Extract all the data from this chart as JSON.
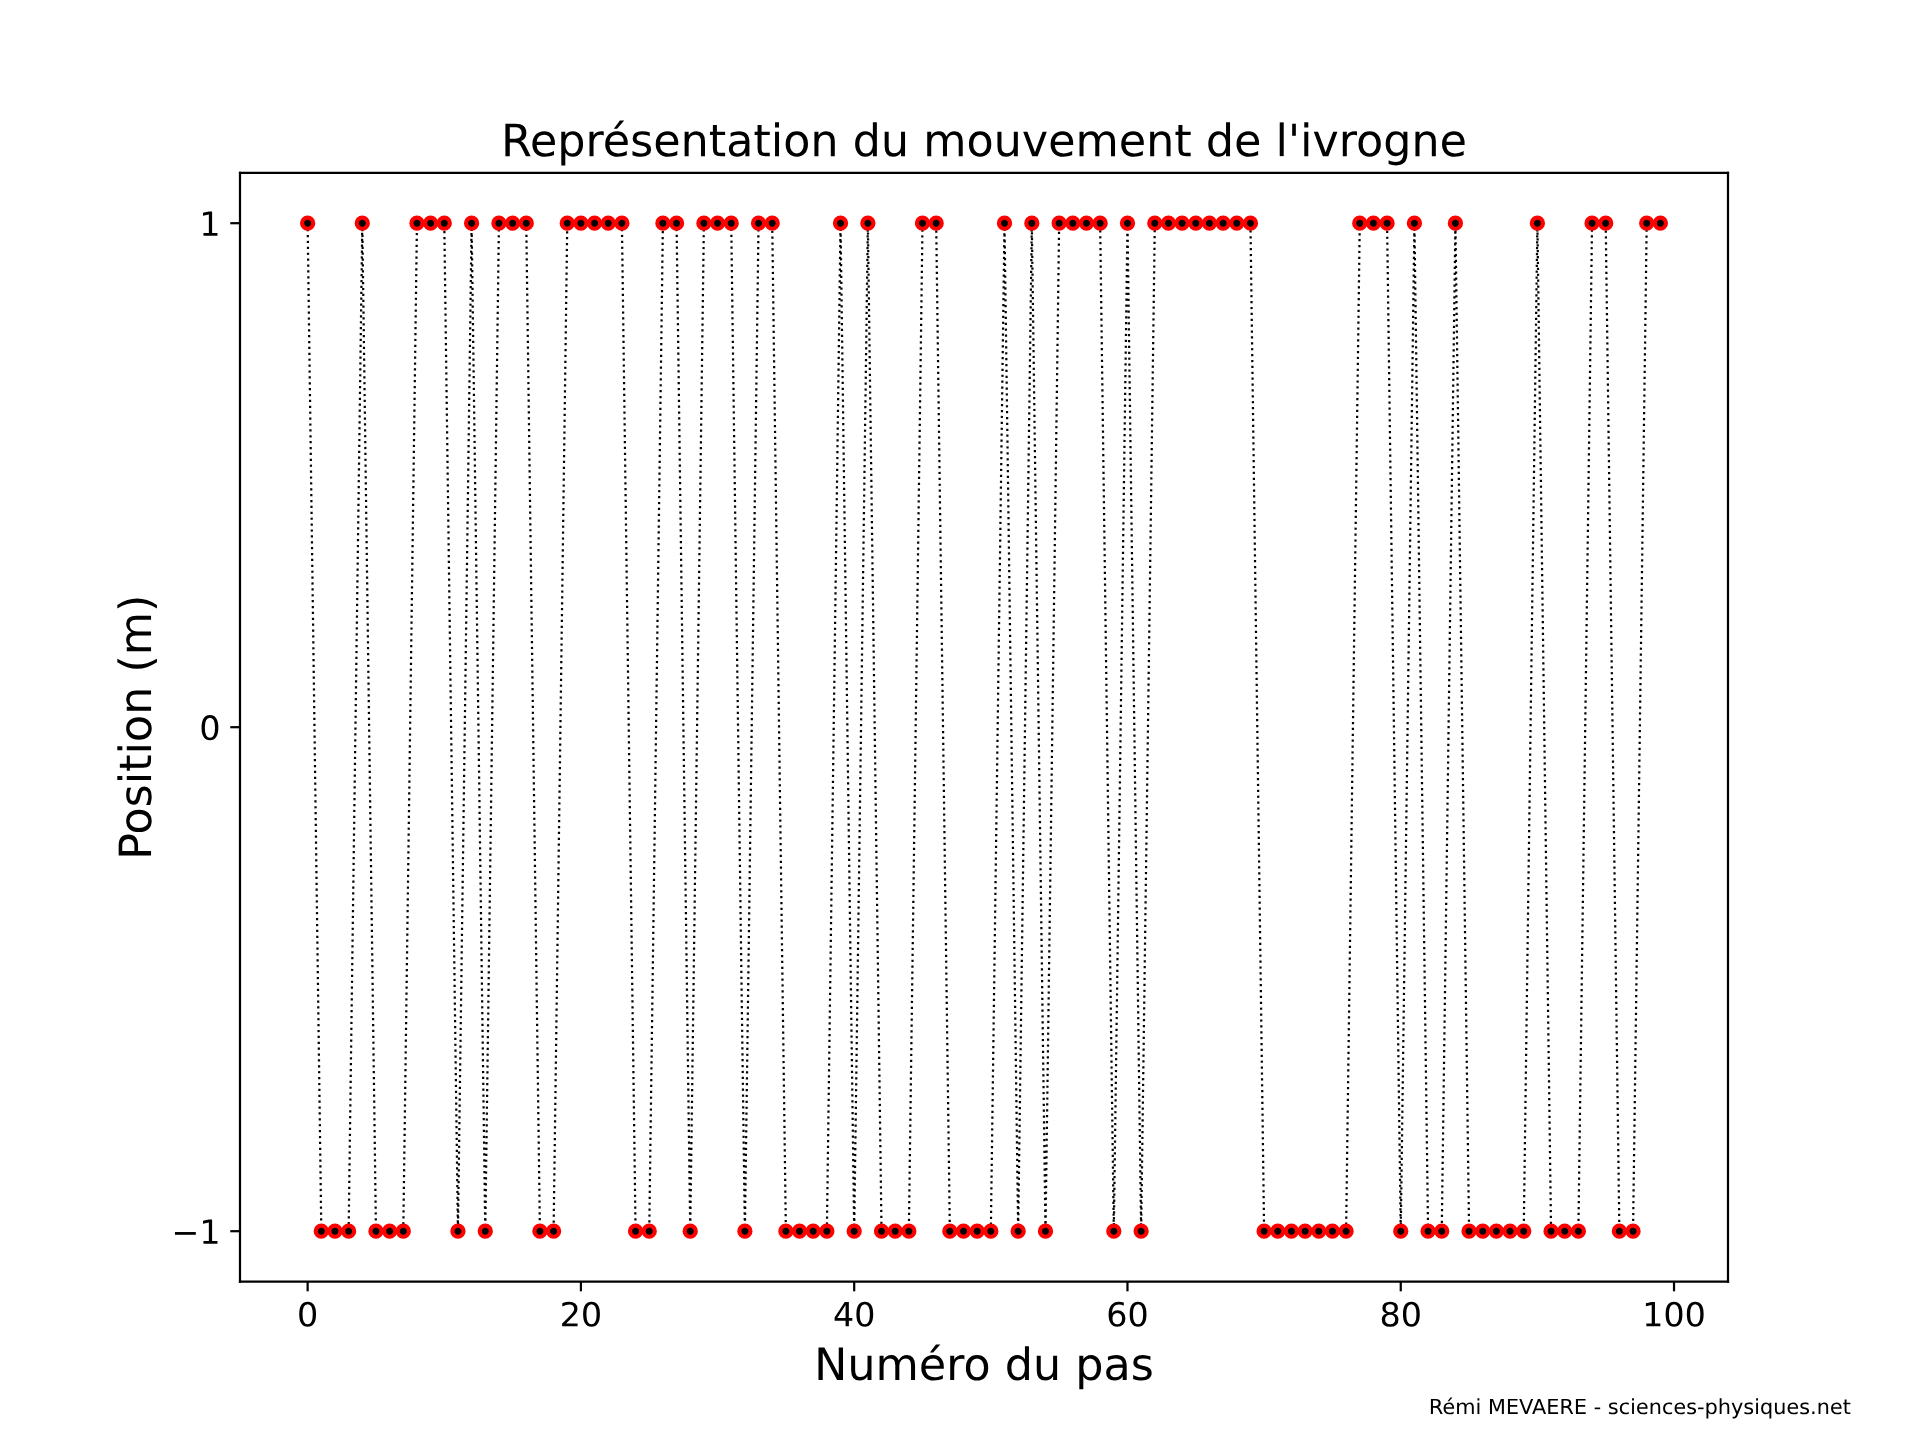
{
  "chart_data": {
    "type": "line",
    "title": "Représentation du mouvement de l'ivrogne",
    "xlabel": "Numéro du pas",
    "ylabel": "Position (m)",
    "annotations": [
      "Rémi MEVAERE - sciences-physiques.net"
    ],
    "x": [
      0,
      1,
      2,
      3,
      4,
      5,
      6,
      7,
      8,
      9,
      10,
      11,
      12,
      13,
      14,
      15,
      16,
      17,
      18,
      19,
      20,
      21,
      22,
      23,
      24,
      25,
      26,
      27,
      28,
      29,
      30,
      31,
      32,
      33,
      34,
      35,
      36,
      37,
      38,
      39,
      40,
      41,
      42,
      43,
      44,
      45,
      46,
      47,
      48,
      49,
      50,
      51,
      52,
      53,
      54,
      55,
      56,
      57,
      58,
      59,
      60,
      61,
      62,
      63,
      64,
      65,
      66,
      67,
      68,
      69,
      70,
      71,
      72,
      73,
      74,
      75,
      76,
      77,
      78,
      79,
      80,
      81,
      82,
      83,
      84,
      85,
      86,
      87,
      88,
      89,
      90,
      91,
      92,
      93,
      94,
      95,
      96,
      97,
      98,
      99
    ],
    "series": [
      {
        "color": "#ff0000",
        "values": [
          1,
          -1,
          -1,
          -1,
          1,
          -1,
          -1,
          -1,
          1,
          1,
          1,
          -1,
          1,
          -1,
          1,
          1,
          1,
          -1,
          -1,
          1,
          1,
          1,
          1,
          1,
          -1,
          -1,
          1,
          1,
          -1,
          1,
          1,
          1,
          -1,
          1,
          1,
          -1,
          -1,
          -1,
          -1,
          1,
          -1,
          1,
          -1,
          -1,
          -1,
          1,
          1,
          -1,
          -1,
          -1,
          -1,
          1,
          -1,
          1,
          -1,
          1,
          1,
          1,
          1,
          -1,
          1,
          -1,
          1,
          1,
          1,
          1,
          1,
          1,
          1,
          1,
          -1,
          -1,
          -1,
          -1,
          -1,
          -1,
          -1,
          1,
          1,
          1,
          -1,
          1,
          -1,
          -1,
          1,
          -1,
          -1,
          -1,
          -1,
          -1,
          1,
          -1,
          -1,
          -1,
          1,
          1,
          -1,
          -1,
          1,
          1
        ]
      }
    ],
    "xlim": [
      -4.95,
      103.95
    ],
    "xticks": [
      0,
      20,
      40,
      60,
      80,
      100
    ],
    "ylim": [
      -1.1,
      1.1
    ],
    "yticks": [
      {
        "value": -1,
        "label": "−1"
      },
      0,
      1
    ],
    "marker": "circle",
    "line_style": "dotted",
    "grid": false,
    "legend": false
  }
}
